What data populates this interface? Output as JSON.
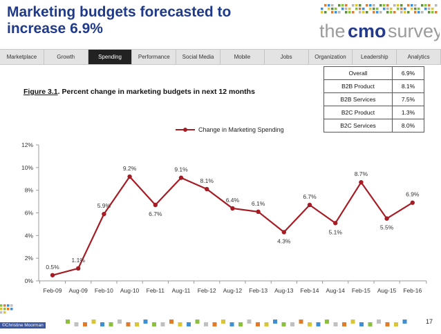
{
  "slide": {
    "title": "Marketing budgets forecasted to increase 6.9%",
    "logo": {
      "part1": "the",
      "part2": "cmo",
      "part3": "survey"
    },
    "figure_label": "Figure 3.1",
    "figure_caption": ".  Percent change in marketing budgets in next 12 months",
    "page_number": "17",
    "credit": "©Christine Moorman"
  },
  "nav": {
    "tabs": [
      "Marketplace",
      "Growth",
      "Spending",
      "Performance",
      "Social Media",
      "Mobile",
      "Jobs",
      "Organization",
      "Leadership",
      "Analytics"
    ],
    "active": "Spending"
  },
  "summary_table": [
    {
      "label": "Overall",
      "value": "6.9%"
    },
    {
      "label": "B2B Product",
      "value": "8.1%"
    },
    {
      "label": "B2B Services",
      "value": "7.5%"
    },
    {
      "label": "B2C Product",
      "value": "1.3%"
    },
    {
      "label": "B2C Services",
      "value": "8.0%"
    }
  ],
  "colors": {
    "series": "#a51c24",
    "title": "#1f3a8a",
    "nav_active": "#222222"
  },
  "chart_data": {
    "type": "line",
    "title": "",
    "xlabel": "",
    "ylabel": "",
    "ylim": [
      0,
      12
    ],
    "yticks": [
      0,
      2,
      4,
      6,
      8,
      10,
      12
    ],
    "ytick_labels": [
      "0%",
      "2%",
      "4%",
      "6%",
      "8%",
      "10%",
      "12%"
    ],
    "categories": [
      "Feb-09",
      "Aug-09",
      "Feb-10",
      "Aug-10",
      "Feb-11",
      "Aug-11",
      "Feb-12",
      "Aug-12",
      "Feb-13",
      "Aug-13",
      "Feb-14",
      "Aug-14",
      "Feb-15",
      "Aug-15",
      "Feb-16"
    ],
    "series": [
      {
        "name": "Change in Marketing Spending",
        "values": [
          0.5,
          1.1,
          5.9,
          9.2,
          6.7,
          9.1,
          8.1,
          6.4,
          6.1,
          4.3,
          6.7,
          5.1,
          8.7,
          5.5,
          6.9
        ],
        "labels": [
          "0.5%",
          "1.1%",
          "5.9%",
          "9.2%",
          "6.7%",
          "9.1%",
          "8.1%",
          "6.4%",
          "6.1%",
          "4.3%",
          "6.7%",
          "5.1%",
          "8.7%",
          "5.5%",
          "6.9%"
        ]
      }
    ],
    "legend": "top-center",
    "grid": false
  }
}
